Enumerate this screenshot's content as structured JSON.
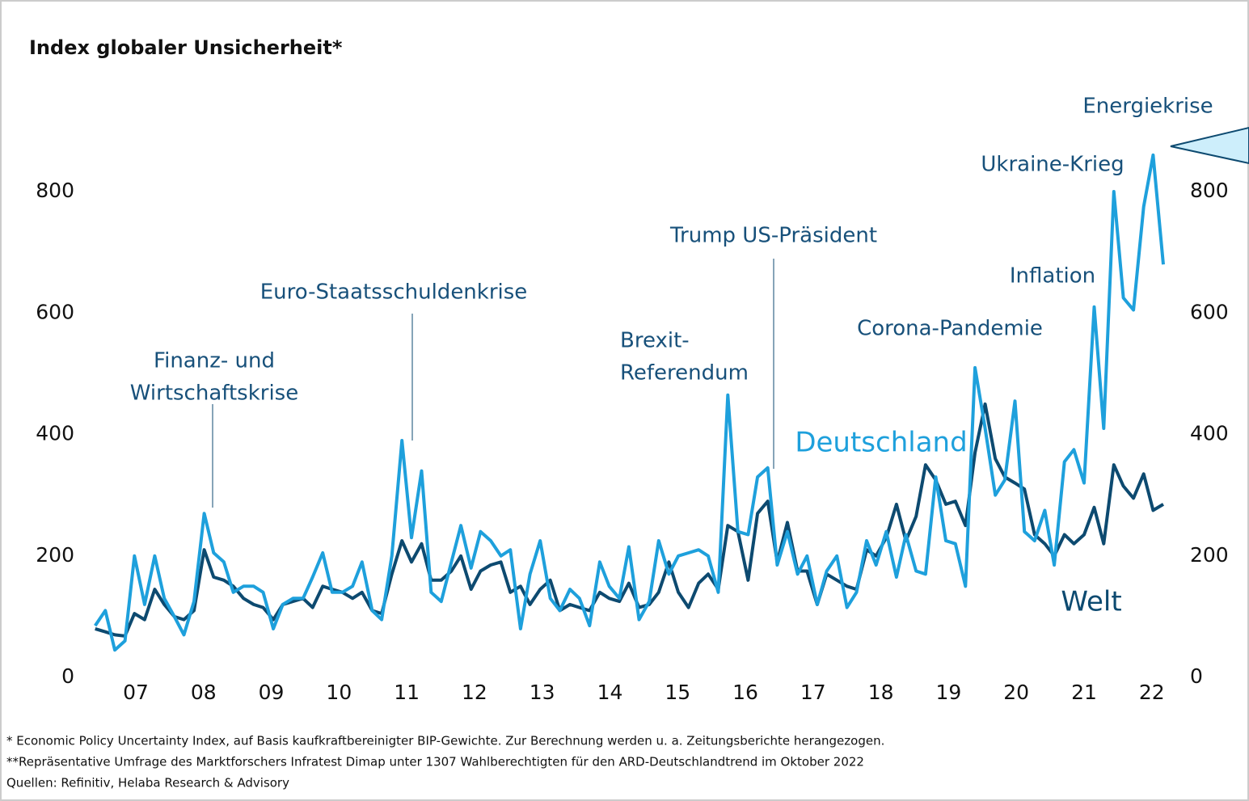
{
  "chart_data": {
    "type": "line",
    "title": "Index globaler Unsicherheit*",
    "x": [
      2006.4,
      2006.55,
      2006.69,
      2006.84,
      2006.98,
      2007.13,
      2007.28,
      2007.42,
      2007.57,
      2007.71,
      2007.86,
      2008.01,
      2008.15,
      2008.3,
      2008.44,
      2008.59,
      2008.74,
      2008.88,
      2009.03,
      2009.17,
      2009.32,
      2009.47,
      2009.61,
      2009.76,
      2009.9,
      2010.05,
      2010.2,
      2010.34,
      2010.49,
      2010.63,
      2010.78,
      2010.93,
      2011.07,
      2011.22,
      2011.36,
      2011.51,
      2011.66,
      2011.8,
      2011.95,
      2012.09,
      2012.24,
      2012.39,
      2012.53,
      2012.68,
      2012.82,
      2012.97,
      2013.12,
      2013.26,
      2013.41,
      2013.55,
      2013.7,
      2013.85,
      2013.99,
      2014.14,
      2014.28,
      2014.43,
      2014.58,
      2014.72,
      2014.87,
      2015.01,
      2015.16,
      2015.31,
      2015.45,
      2015.6,
      2015.74,
      2015.89,
      2016.04,
      2016.18,
      2016.33,
      2016.47,
      2016.62,
      2016.77,
      2016.91,
      2017.06,
      2017.2,
      2017.35,
      2017.5,
      2017.64,
      2017.79,
      2017.93,
      2018.08,
      2018.23,
      2018.37,
      2018.52,
      2018.66,
      2018.81,
      2018.96,
      2019.1,
      2019.25,
      2019.39,
      2019.54,
      2019.69,
      2019.83,
      2019.98,
      2020.12,
      2020.27,
      2020.42,
      2020.56,
      2020.71,
      2020.85,
      2021.0,
      2021.15,
      2021.29,
      2021.44,
      2021.58,
      2021.73,
      2021.88,
      2022.02,
      2022.17
    ],
    "series": [
      {
        "name": "Welt",
        "color": "#0d4a70",
        "values": [
          80,
          75,
          70,
          68,
          105,
          95,
          145,
          120,
          100,
          95,
          110,
          210,
          165,
          160,
          150,
          130,
          120,
          115,
          95,
          120,
          125,
          130,
          115,
          150,
          145,
          140,
          130,
          140,
          110,
          105,
          170,
          225,
          190,
          220,
          160,
          160,
          175,
          200,
          145,
          175,
          185,
          190,
          140,
          150,
          120,
          145,
          160,
          110,
          120,
          115,
          110,
          140,
          130,
          125,
          155,
          115,
          120,
          140,
          190,
          140,
          115,
          155,
          170,
          145,
          250,
          240,
          160,
          270,
          290,
          190,
          255,
          175,
          175,
          120,
          170,
          160,
          150,
          145,
          210,
          200,
          230,
          285,
          225,
          265,
          350,
          325,
          285,
          290,
          250,
          370,
          450,
          360,
          330,
          320,
          310,
          235,
          220,
          200,
          235,
          220,
          235,
          280,
          220,
          350,
          315,
          295,
          335,
          275,
          285
        ]
      },
      {
        "name": "Deutschland",
        "color": "#1ea0dc",
        "values": [
          85,
          110,
          45,
          60,
          200,
          120,
          200,
          130,
          100,
          70,
          125,
          270,
          205,
          190,
          140,
          150,
          150,
          140,
          80,
          120,
          130,
          130,
          165,
          205,
          140,
          140,
          150,
          190,
          110,
          95,
          200,
          390,
          230,
          340,
          140,
          125,
          190,
          250,
          180,
          240,
          225,
          200,
          210,
          80,
          170,
          225,
          130,
          110,
          145,
          130,
          85,
          190,
          150,
          130,
          215,
          95,
          125,
          225,
          170,
          200,
          205,
          210,
          200,
          140,
          465,
          240,
          235,
          330,
          345,
          185,
          240,
          170,
          200,
          120,
          175,
          200,
          115,
          140,
          225,
          185,
          240,
          165,
          235,
          175,
          170,
          330,
          225,
          220,
          150,
          510,
          410,
          300,
          325,
          455,
          240,
          225,
          275,
          185,
          355,
          375,
          320,
          610,
          410,
          800,
          625,
          605,
          775,
          860,
          680
        ]
      }
    ],
    "xlim": [
      2006.4,
      2022.17
    ],
    "xticks": [
      {
        "value": 2007,
        "label": "07"
      },
      {
        "value": 2008,
        "label": "08"
      },
      {
        "value": 2009,
        "label": "09"
      },
      {
        "value": 2010,
        "label": "10"
      },
      {
        "value": 2011,
        "label": "11"
      },
      {
        "value": 2012,
        "label": "12"
      },
      {
        "value": 2013,
        "label": "13"
      },
      {
        "value": 2014,
        "label": "14"
      },
      {
        "value": 2015,
        "label": "15"
      },
      {
        "value": 2016,
        "label": "16"
      },
      {
        "value": 2017,
        "label": "17"
      },
      {
        "value": 2018,
        "label": "18"
      },
      {
        "value": 2019,
        "label": "19"
      },
      {
        "value": 2020,
        "label": "20"
      },
      {
        "value": 2021,
        "label": "21"
      },
      {
        "value": 2022,
        "label": "22"
      }
    ],
    "ylim": [
      0,
      900
    ],
    "yticks": [
      0,
      200,
      400,
      600,
      800
    ],
    "annotations": [
      {
        "lines": [
          "Finanz- und",
          "Wirtschaftskrise"
        ]
      },
      {
        "lines": [
          "Euro-Staatsschuldenkrise"
        ]
      },
      {
        "lines": [
          "Brexit-",
          "Referendum"
        ]
      },
      {
        "lines": [
          "Trump US-Präsident"
        ]
      },
      {
        "lines": [
          "Corona-Pandemie"
        ]
      },
      {
        "lines": [
          "Inflation"
        ]
      },
      {
        "lines": [
          "Ukraine-Krieg"
        ]
      },
      {
        "lines": [
          "Energiekrise"
        ]
      }
    ],
    "notes": [
      "* Economic Policy Uncertainty Index, auf Basis kaufkraftbereinigter BIP-Gewichte. Zur Berechnung werden u. a. Zeitungsberichte herangezogen.",
      "**Repräsentative Umfrage des Marktforschers Infratest Dimap unter 1307 Wahlberechtigten für den ARD-Deutschlandtrend im Oktober 2022",
      "Quellen: Refinitiv, Helaba Research & Advisory"
    ]
  }
}
